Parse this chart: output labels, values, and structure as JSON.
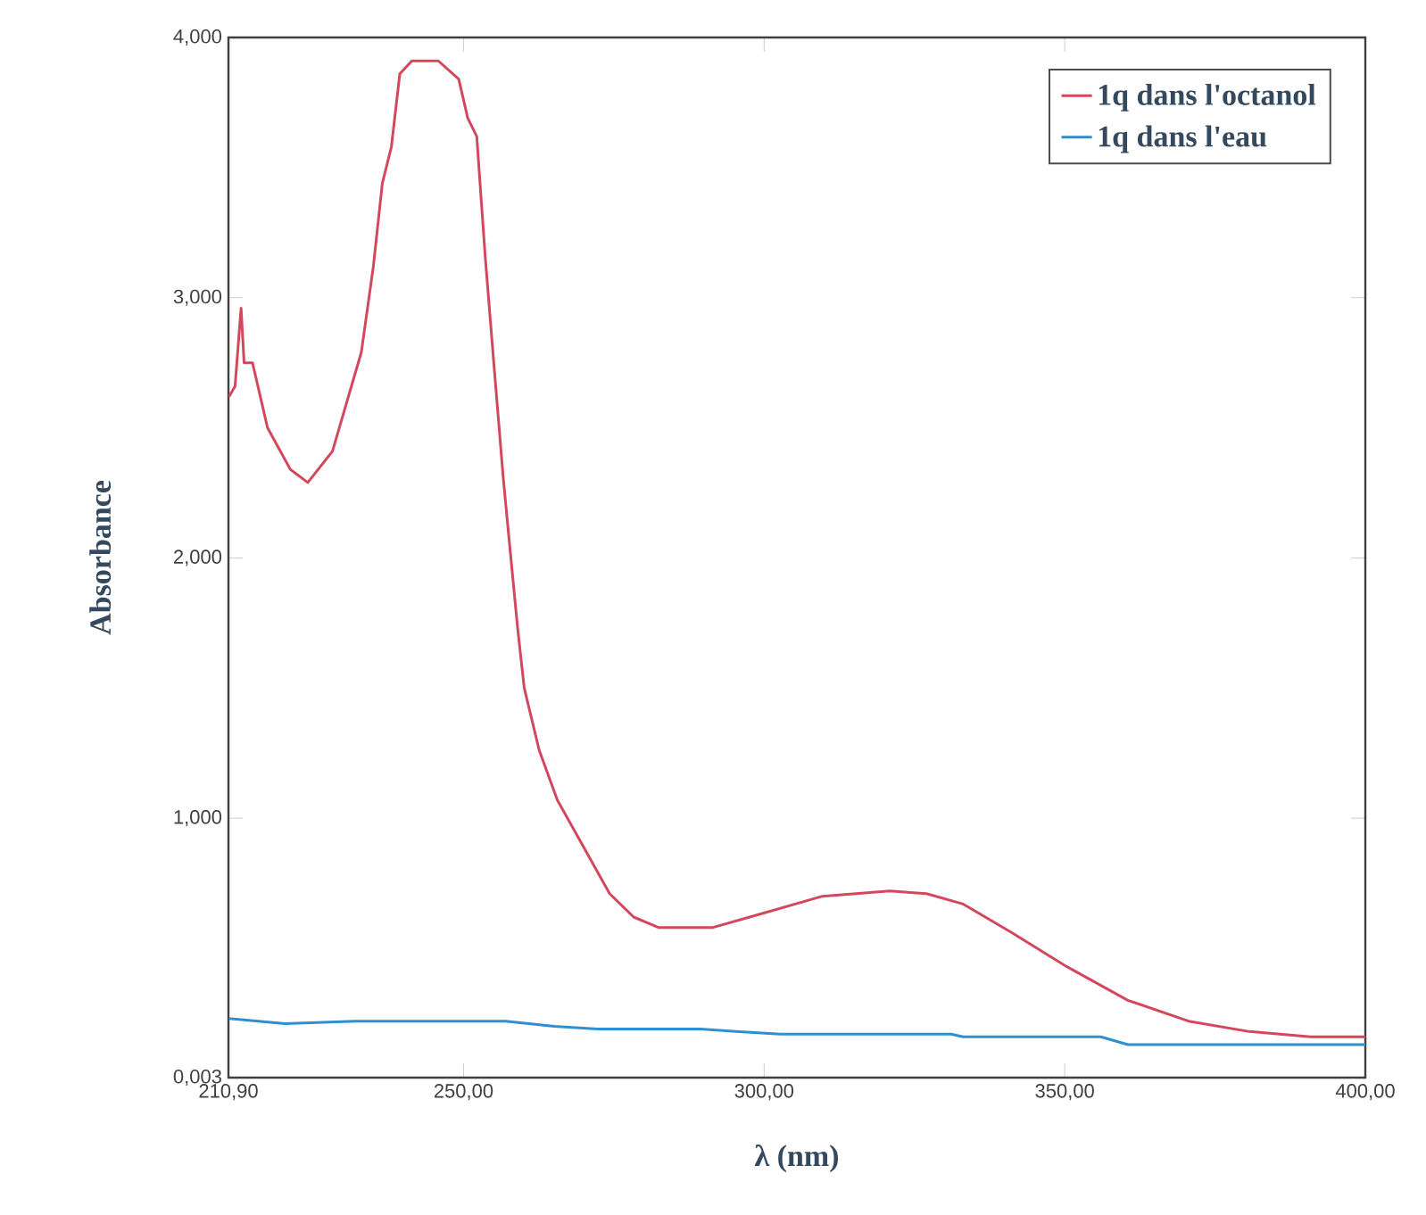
{
  "chart_data": {
    "type": "line",
    "xlabel": "λ (nm)",
    "ylabel": "Absorbance",
    "xlim": [
      210.9,
      400
    ],
    "ylim": [
      0.003,
      4
    ],
    "xticks": [
      {
        "value": 210.9,
        "label": "210,90"
      },
      {
        "value": 250,
        "label": "250,00"
      },
      {
        "value": 300,
        "label": "300,00"
      },
      {
        "value": 350,
        "label": "350,00"
      },
      {
        "value": 400,
        "label": "400,00"
      }
    ],
    "yticks": [
      {
        "value": 0.003,
        "label": "0,003"
      },
      {
        "value": 1,
        "label": "1,000"
      },
      {
        "value": 2,
        "label": "2,000"
      },
      {
        "value": 3,
        "label": "3,000"
      },
      {
        "value": 4,
        "label": "4,000"
      }
    ],
    "grid": false,
    "legend": "top right",
    "marker": "none",
    "line_style": "solid",
    "series": [
      {
        "name": "1q dans l'octanol",
        "color": "#d4485e",
        "x": [
          211.0,
          212.0,
          213.0,
          213.5,
          214.9,
          217.4,
          221.2,
          224.1,
          228.2,
          231.1,
          233.0,
          235.0,
          236.5,
          238.0,
          239.4,
          241.4,
          245.8,
          249.2,
          250.7,
          252.2,
          253.6,
          255.1,
          256.6,
          257.5,
          259.0,
          260.1,
          262.6,
          265.6,
          270.2,
          274.3,
          278.3,
          282.4,
          291.5,
          297.6,
          309.7,
          320.9,
          327.0,
          333.1,
          341.2,
          350.3,
          360.5,
          370.6,
          380.7,
          390.9,
          397.0,
          400.0
        ],
        "values": [
          2.62,
          2.66,
          2.96,
          2.75,
          2.75,
          2.5,
          2.34,
          2.29,
          2.41,
          2.64,
          2.79,
          3.12,
          3.44,
          3.58,
          3.86,
          3.91,
          3.91,
          3.84,
          3.69,
          3.62,
          3.16,
          2.73,
          2.31,
          2.09,
          1.73,
          1.5,
          1.26,
          1.07,
          0.88,
          0.71,
          0.62,
          0.58,
          0.58,
          0.62,
          0.7,
          0.72,
          0.71,
          0.67,
          0.56,
          0.43,
          0.3,
          0.22,
          0.18,
          0.16,
          0.16,
          0.16
        ]
      },
      {
        "name": "1q dans l'eau",
        "color": "#2f8fd0",
        "x": [
          211.0,
          220.3,
          232.0,
          243.8,
          257.0,
          265.1,
          272.3,
          289.4,
          295.3,
          302.7,
          331.1,
          333.1,
          356.0,
          360.5,
          400.0
        ],
        "values": [
          0.23,
          0.21,
          0.22,
          0.22,
          0.22,
          0.2,
          0.19,
          0.19,
          0.18,
          0.17,
          0.17,
          0.16,
          0.16,
          0.13,
          0.13
        ]
      }
    ]
  }
}
